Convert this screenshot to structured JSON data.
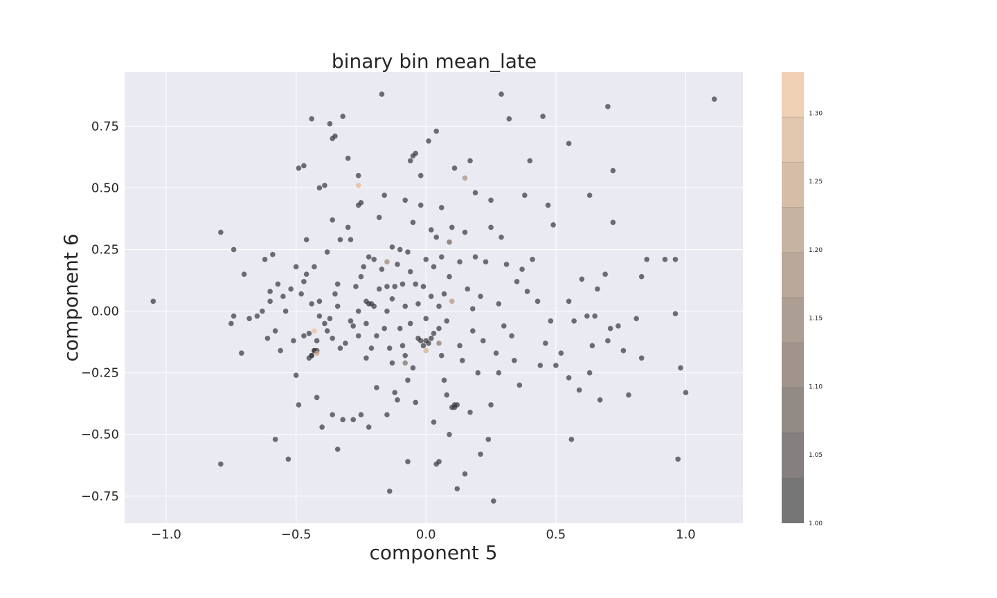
{
  "chart_data": {
    "type": "scatter",
    "title": "binary bin mean_late",
    "xlabel": "component 5",
    "ylabel": "component 6",
    "xlim": [
      -1.16,
      1.22
    ],
    "ylim": [
      -0.86,
      0.97
    ],
    "xticks": [
      -1.0,
      -0.5,
      0.0,
      0.5,
      1.0
    ],
    "xtick_labels": [
      "−1.0",
      "−0.5",
      "0.0",
      "0.5",
      "1.0"
    ],
    "yticks": [
      -0.75,
      -0.5,
      -0.25,
      0.0,
      0.25,
      0.5,
      0.75
    ],
    "ytick_labels": [
      "−0.75",
      "−0.50",
      "−0.25",
      "0.00",
      "0.25",
      "0.50",
      "0.75"
    ],
    "grid": true,
    "colorbar": {
      "range": [
        1.0,
        1.33
      ],
      "ticks": [
        1.0,
        1.05,
        1.1,
        1.15,
        1.2,
        1.25,
        1.3
      ],
      "tick_labels": [
        "1.00",
        "1.05",
        "1.10",
        "1.15",
        "1.20",
        "1.25",
        "1.30"
      ],
      "colormap": "dark gray to peach",
      "color_low": "#3a3a3e",
      "color_high": "#f3c69f",
      "levels": 10
    },
    "colors": {
      "axes_background": "#eaeaf2",
      "grid": "#ffffff",
      "point_default": "#3d3d3d"
    },
    "points": [
      [
        -1.05,
        0.04,
        1.0
      ],
      [
        -0.79,
        0.32,
        1.0
      ],
      [
        -0.79,
        -0.62,
        1.0
      ],
      [
        -0.75,
        -0.05,
        1.0
      ],
      [
        -0.74,
        0.25,
        1.0
      ],
      [
        -0.74,
        -0.02,
        1.0
      ],
      [
        -0.71,
        -0.17,
        1.0
      ],
      [
        -0.7,
        0.15,
        1.0
      ],
      [
        -0.68,
        -0.03,
        1.0
      ],
      [
        -0.65,
        -0.02,
        1.0
      ],
      [
        -0.63,
        0.0,
        1.0
      ],
      [
        -0.62,
        0.21,
        1.0
      ],
      [
        -0.61,
        -0.11,
        1.0
      ],
      [
        -0.6,
        0.08,
        1.0
      ],
      [
        -0.6,
        0.04,
        1.0
      ],
      [
        -0.59,
        0.23,
        1.0
      ],
      [
        -0.58,
        -0.08,
        1.0
      ],
      [
        -0.58,
        -0.52,
        1.0
      ],
      [
        -0.57,
        0.11,
        1.0
      ],
      [
        -0.56,
        -0.16,
        1.0
      ],
      [
        -0.55,
        0.06,
        1.0
      ],
      [
        -0.54,
        0.0,
        1.0
      ],
      [
        -0.53,
        -0.6,
        1.0
      ],
      [
        -0.52,
        0.09,
        1.0
      ],
      [
        -0.51,
        -0.12,
        1.0
      ],
      [
        -0.5,
        0.18,
        1.0
      ],
      [
        -0.5,
        -0.26,
        1.0
      ],
      [
        -0.49,
        -0.38,
        1.0
      ],
      [
        -0.49,
        0.58,
        1.0
      ],
      [
        -0.48,
        0.07,
        1.0
      ],
      [
        -0.47,
        -0.1,
        1.0
      ],
      [
        -0.47,
        0.59,
        1.0
      ],
      [
        -0.47,
        0.12,
        1.0
      ],
      [
        -0.46,
        0.29,
        1.0
      ],
      [
        -0.46,
        0.15,
        1.0
      ],
      [
        -0.45,
        -0.19,
        1.0
      ],
      [
        -0.45,
        -0.09,
        1.0
      ],
      [
        -0.44,
        0.03,
        1.0
      ],
      [
        -0.44,
        -0.18,
        1.0
      ],
      [
        -0.44,
        -0.18,
        1.0
      ],
      [
        -0.44,
        0.78,
        1.0
      ],
      [
        -0.43,
        -0.16,
        1.0
      ],
      [
        -0.43,
        -0.16,
        1.0
      ],
      [
        -0.43,
        0.18,
        1.0
      ],
      [
        -0.42,
        -0.16,
        1.0
      ],
      [
        -0.42,
        -0.35,
        1.0
      ],
      [
        -0.42,
        -0.12,
        1.0
      ],
      [
        -0.41,
        -0.02,
        1.0
      ],
      [
        -0.41,
        0.04,
        1.0
      ],
      [
        -0.41,
        0.5,
        1.0
      ],
      [
        -0.4,
        -0.47,
        1.0
      ],
      [
        -0.39,
        -0.05,
        1.0
      ],
      [
        -0.39,
        0.51,
        1.0
      ],
      [
        -0.38,
        0.24,
        1.0
      ],
      [
        -0.38,
        -0.08,
        1.0
      ],
      [
        -0.37,
        -0.03,
        1.0
      ],
      [
        -0.37,
        0.76,
        1.0
      ],
      [
        -0.36,
        0.7,
        1.0
      ],
      [
        -0.36,
        -0.42,
        1.0
      ],
      [
        -0.36,
        -0.11,
        1.0
      ],
      [
        -0.36,
        0.37,
        1.0
      ],
      [
        -0.35,
        0.07,
        1.0
      ],
      [
        -0.35,
        0.71,
        1.0
      ],
      [
        -0.34,
        -0.56,
        1.0
      ],
      [
        -0.34,
        0.02,
        1.0
      ],
      [
        -0.34,
        0.11,
        1.0
      ],
      [
        -0.33,
        0.29,
        1.0
      ],
      [
        -0.33,
        -0.15,
        1.0
      ],
      [
        -0.32,
        0.79,
        1.0
      ],
      [
        -0.32,
        -0.44,
        1.0
      ],
      [
        -0.31,
        -0.13,
        1.0
      ],
      [
        -0.3,
        0.62,
        1.0
      ],
      [
        -0.3,
        0.34,
        1.0
      ],
      [
        -0.29,
        0.29,
        1.0
      ],
      [
        -0.29,
        -0.04,
        1.0
      ],
      [
        -0.28,
        -0.06,
        1.0
      ],
      [
        -0.28,
        -0.44,
        1.0
      ],
      [
        -0.27,
        0.1,
        1.0
      ],
      [
        -0.26,
        0.0,
        1.0
      ],
      [
        -0.26,
        -0.1,
        1.0
      ],
      [
        -0.26,
        0.43,
        1.0
      ],
      [
        -0.26,
        0.55,
        1.0
      ],
      [
        -0.25,
        0.44,
        1.0
      ],
      [
        -0.25,
        0.14,
        1.0
      ],
      [
        -0.25,
        -0.42,
        1.0
      ],
      [
        -0.24,
        0.18,
        1.0
      ],
      [
        -0.23,
        0.04,
        1.0
      ],
      [
        -0.23,
        -0.05,
        1.0
      ],
      [
        -0.23,
        -0.19,
        1.0
      ],
      [
        -0.22,
        0.03,
        1.0
      ],
      [
        -0.22,
        0.22,
        1.0
      ],
      [
        -0.22,
        -0.47,
        1.0
      ],
      [
        -0.21,
        -0.15,
        1.0
      ],
      [
        -0.21,
        0.03,
        1.0
      ],
      [
        -0.2,
        0.02,
        1.0
      ],
      [
        -0.2,
        0.21,
        1.0
      ],
      [
        -0.19,
        -0.1,
        1.0
      ],
      [
        -0.19,
        -0.31,
        1.0
      ],
      [
        -0.18,
        0.38,
        1.0
      ],
      [
        -0.18,
        0.09,
        1.0
      ],
      [
        -0.17,
        0.88,
        1.0
      ],
      [
        -0.17,
        0.17,
        1.0
      ],
      [
        -0.16,
        -0.07,
        1.0
      ],
      [
        -0.16,
        0.47,
        1.0
      ],
      [
        -0.15,
        -0.42,
        1.0
      ],
      [
        -0.15,
        0.0,
        1.0
      ],
      [
        -0.15,
        0.1,
        1.0
      ],
      [
        -0.14,
        -0.15,
        1.0
      ],
      [
        -0.14,
        -0.73,
        1.0
      ],
      [
        -0.13,
        0.26,
        1.0
      ],
      [
        -0.13,
        0.05,
        1.0
      ],
      [
        -0.13,
        -0.21,
        1.0
      ],
      [
        -0.12,
        -0.33,
        1.0
      ],
      [
        -0.12,
        0.1,
        1.0
      ],
      [
        -0.11,
        0.19,
        1.0
      ],
      [
        -0.11,
        -0.36,
        1.0
      ],
      [
        -0.1,
        0.25,
        1.0
      ],
      [
        -0.1,
        -0.07,
        1.0
      ],
      [
        -0.09,
        0.11,
        1.0
      ],
      [
        -0.09,
        -0.14,
        1.0
      ],
      [
        -0.08,
        0.45,
        1.0
      ],
      [
        -0.08,
        0.02,
        1.0
      ],
      [
        -0.08,
        -0.18,
        1.0
      ],
      [
        -0.07,
        0.24,
        1.0
      ],
      [
        -0.07,
        -0.28,
        1.0
      ],
      [
        -0.07,
        -0.61,
        1.0
      ],
      [
        -0.06,
        0.61,
        1.0
      ],
      [
        -0.06,
        0.16,
        1.0
      ],
      [
        -0.06,
        -0.05,
        1.0
      ],
      [
        -0.05,
        0.36,
        1.0
      ],
      [
        -0.05,
        0.63,
        1.0
      ],
      [
        -0.05,
        -0.23,
        1.0
      ],
      [
        -0.04,
        0.11,
        1.0
      ],
      [
        -0.04,
        0.64,
        1.0
      ],
      [
        -0.04,
        -0.37,
        1.0
      ],
      [
        -0.03,
        0.03,
        1.0
      ],
      [
        -0.03,
        -0.11,
        1.0
      ],
      [
        -0.02,
        0.43,
        1.0
      ],
      [
        -0.02,
        -0.12,
        1.0
      ],
      [
        -0.02,
        0.55,
        1.0
      ],
      [
        -0.01,
        0.1,
        1.0
      ],
      [
        -0.01,
        -0.14,
        1.0
      ],
      [
        0.0,
        -0.03,
        1.0
      ],
      [
        0.0,
        0.21,
        1.0
      ],
      [
        0.0,
        -0.12,
        1.0
      ],
      [
        0.01,
        -0.13,
        1.0
      ],
      [
        0.01,
        0.69,
        1.0
      ],
      [
        0.02,
        -0.11,
        1.0
      ],
      [
        0.02,
        0.33,
        1.0
      ],
      [
        0.02,
        0.06,
        1.0
      ],
      [
        0.03,
        -0.45,
        1.0
      ],
      [
        0.03,
        0.18,
        1.0
      ],
      [
        0.03,
        -0.09,
        1.0
      ],
      [
        0.04,
        0.3,
        1.0
      ],
      [
        0.04,
        -0.62,
        1.0
      ],
      [
        0.04,
        0.73,
        1.0
      ],
      [
        0.05,
        0.02,
        1.0
      ],
      [
        0.05,
        -0.07,
        1.0
      ],
      [
        0.05,
        -0.61,
        1.0
      ],
      [
        0.06,
        0.42,
        1.0
      ],
      [
        0.06,
        0.22,
        1.0
      ],
      [
        0.06,
        -0.18,
        1.0
      ],
      [
        0.07,
        -0.28,
        1.0
      ],
      [
        0.07,
        0.07,
        1.0
      ],
      [
        0.08,
        -0.34,
        1.0
      ],
      [
        0.08,
        -0.04,
        1.0
      ],
      [
        0.09,
        0.14,
        1.0
      ],
      [
        0.09,
        -0.5,
        1.0
      ],
      [
        0.1,
        0.34,
        1.0
      ],
      [
        0.1,
        -0.39,
        1.0
      ],
      [
        0.11,
        -0.38,
        1.0
      ],
      [
        0.11,
        -0.39,
        1.0
      ],
      [
        0.11,
        0.58,
        1.0
      ],
      [
        0.12,
        -0.72,
        1.0
      ],
      [
        0.12,
        -0.38,
        1.0
      ],
      [
        0.13,
        0.2,
        1.0
      ],
      [
        0.13,
        -0.14,
        1.0
      ],
      [
        0.14,
        -0.2,
        1.0
      ],
      [
        0.15,
        0.32,
        1.0
      ],
      [
        0.15,
        -0.66,
        1.0
      ],
      [
        0.16,
        0.09,
        1.0
      ],
      [
        0.17,
        -0.41,
        1.0
      ],
      [
        0.17,
        0.61,
        1.0
      ],
      [
        0.18,
        0.01,
        1.0
      ],
      [
        0.18,
        -0.08,
        1.0
      ],
      [
        0.19,
        0.48,
        1.0
      ],
      [
        0.19,
        0.22,
        1.0
      ],
      [
        0.2,
        -0.25,
        1.0
      ],
      [
        0.21,
        -0.58,
        1.0
      ],
      [
        0.21,
        0.06,
        1.0
      ],
      [
        0.22,
        -0.12,
        1.0
      ],
      [
        0.23,
        0.2,
        1.0
      ],
      [
        0.24,
        -0.52,
        1.0
      ],
      [
        0.25,
        -0.38,
        1.0
      ],
      [
        0.25,
        0.34,
        1.0
      ],
      [
        0.25,
        0.45,
        1.0
      ],
      [
        0.26,
        -0.77,
        1.0
      ],
      [
        0.27,
        -0.17,
        1.0
      ],
      [
        0.28,
        0.03,
        1.0
      ],
      [
        0.28,
        -0.25,
        1.0
      ],
      [
        0.29,
        0.3,
        1.0
      ],
      [
        0.29,
        0.88,
        1.0
      ],
      [
        0.3,
        -0.06,
        1.0
      ],
      [
        0.31,
        0.19,
        1.0
      ],
      [
        0.32,
        0.78,
        1.0
      ],
      [
        0.33,
        -0.1,
        1.0
      ],
      [
        0.34,
        -0.2,
        1.0
      ],
      [
        0.35,
        0.12,
        1.0
      ],
      [
        0.36,
        -0.3,
        1.0
      ],
      [
        0.37,
        0.17,
        1.0
      ],
      [
        0.38,
        0.47,
        1.0
      ],
      [
        0.39,
        0.08,
        1.0
      ],
      [
        0.4,
        0.61,
        1.0
      ],
      [
        0.41,
        0.21,
        1.0
      ],
      [
        0.43,
        0.04,
        1.0
      ],
      [
        0.44,
        -0.22,
        1.0
      ],
      [
        0.45,
        0.79,
        1.0
      ],
      [
        0.46,
        -0.13,
        1.0
      ],
      [
        0.47,
        0.43,
        1.0
      ],
      [
        0.48,
        -0.04,
        1.0
      ],
      [
        0.49,
        0.35,
        1.0
      ],
      [
        0.5,
        -0.22,
        1.0
      ],
      [
        0.52,
        -0.17,
        1.0
      ],
      [
        0.55,
        0.04,
        1.0
      ],
      [
        0.55,
        -0.27,
        1.0
      ],
      [
        0.55,
        0.68,
        1.0
      ],
      [
        0.56,
        -0.52,
        1.0
      ],
      [
        0.57,
        -0.04,
        1.0
      ],
      [
        0.59,
        -0.32,
        1.0
      ],
      [
        0.6,
        0.13,
        1.0
      ],
      [
        0.62,
        -0.02,
        1.0
      ],
      [
        0.63,
        -0.25,
        1.0
      ],
      [
        0.63,
        0.47,
        1.0
      ],
      [
        0.64,
        -0.14,
        1.0
      ],
      [
        0.65,
        -0.02,
        1.0
      ],
      [
        0.66,
        0.09,
        1.0
      ],
      [
        0.67,
        -0.36,
        1.0
      ],
      [
        0.69,
        0.15,
        1.0
      ],
      [
        0.7,
        -0.12,
        1.0
      ],
      [
        0.7,
        0.83,
        1.0
      ],
      [
        0.71,
        -0.07,
        1.0
      ],
      [
        0.72,
        0.36,
        1.0
      ],
      [
        0.72,
        0.57,
        1.0
      ],
      [
        0.74,
        -0.06,
        1.0
      ],
      [
        0.76,
        -0.16,
        1.0
      ],
      [
        0.78,
        -0.34,
        1.0
      ],
      [
        0.81,
        -0.03,
        1.0
      ],
      [
        0.83,
        0.14,
        1.0
      ],
      [
        0.83,
        -0.19,
        1.0
      ],
      [
        0.85,
        0.21,
        1.0
      ],
      [
        0.92,
        0.21,
        1.0
      ],
      [
        0.96,
        -0.01,
        1.0
      ],
      [
        0.96,
        0.21,
        1.0
      ],
      [
        0.97,
        -0.6,
        1.0
      ],
      [
        0.98,
        -0.23,
        1.0
      ],
      [
        1.0,
        -0.33,
        1.0
      ],
      [
        1.11,
        0.86,
        1.0
      ],
      [
        -0.26,
        0.51,
        1.3
      ],
      [
        0.15,
        0.54,
        1.2
      ],
      [
        -0.43,
        -0.08,
        1.32
      ],
      [
        -0.15,
        0.2,
        1.18
      ],
      [
        0.1,
        0.04,
        1.22
      ],
      [
        0.05,
        -0.13,
        1.15
      ],
      [
        -0.42,
        -0.17,
        1.25
      ],
      [
        0.0,
        -0.16,
        1.28
      ],
      [
        0.09,
        0.28,
        1.1
      ],
      [
        -0.08,
        -0.21,
        1.12
      ]
    ]
  }
}
